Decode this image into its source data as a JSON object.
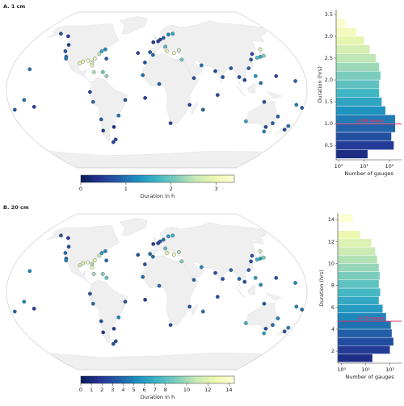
{
  "chart_data": [
    {
      "type": "map-scatter",
      "title": "A. 1 cm",
      "x": [
        -70,
        -74,
        -76,
        -80,
        -81,
        -82,
        -88,
        -94,
        -97,
        -124,
        -123,
        -118,
        -117,
        -135,
        -150,
        -66,
        -77,
        -61,
        -80,
        -77,
        -71,
        -73,
        -65,
        -38,
        -48,
        -57,
        -5,
        2,
        5,
        10,
        18,
        25,
        -9,
        -5,
        14,
        23,
        30,
        12,
        -17,
        3,
        18,
        40,
        45,
        32,
        56,
        72,
        80,
        92,
        100,
        106,
        114,
        121,
        126,
        130,
        135,
        140,
        141,
        120,
        125,
        115,
        130,
        145,
        151,
        153,
        147,
        174,
        173,
        -157,
        -150,
        -175,
        167,
        170,
        178,
        145,
        -160,
        -65,
        -25,
        -15,
        -14,
        -60,
        57,
        73
      ],
      "y": [
        42,
        40,
        37,
        32,
        25,
        28,
        30,
        29,
        27,
        47,
        40,
        34,
        32,
        57,
        60,
        18,
        18,
        14,
        -2,
        -12,
        -30,
        -42,
        -55,
        -10,
        -26,
        -38,
        50,
        51,
        53,
        55,
        59,
        60,
        39,
        36,
        40,
        38,
        41,
        45,
        15,
        6,
        -34,
        -15,
        12,
        31,
        25,
        19,
        13,
        22,
        13,
        10,
        22,
        31,
        37,
        33,
        34,
        35,
        42,
        14,
        7,
        -32,
        -12,
        -38,
        -34,
        -27,
        -43,
        -37,
        -41,
        21,
        -17,
        -20,
        9,
        -15,
        -18,
        14,
        -10,
        32,
        38,
        28,
        -8,
        -52,
        -20,
        -5
      ],
      "values": [
        1.2,
        1.5,
        2.5,
        2.8,
        3.0,
        2.6,
        3.2,
        3.0,
        2.9,
        0.6,
        0.8,
        1.0,
        1.1,
        0.5,
        0.7,
        2.0,
        2.4,
        2.2,
        0.6,
        0.9,
        0.8,
        0.5,
        0.6,
        0.7,
        1.0,
        0.4,
        0.4,
        0.5,
        0.6,
        0.8,
        1.2,
        1.5,
        0.8,
        0.9,
        2.9,
        3.1,
        2.5,
        1.8,
        1.0,
        0.8,
        0.6,
        0.5,
        0.7,
        2.0,
        1.0,
        0.6,
        0.7,
        0.8,
        0.7,
        0.6,
        0.9,
        0.7,
        0.6,
        1.8,
        1.5,
        2.2,
        2.8,
        1.3,
        1.0,
        1.5,
        0.7,
        0.6,
        0.8,
        0.9,
        1.2,
        1.0,
        0.7,
        1.0,
        0.5,
        0.8,
        0.9,
        1.1,
        0.8,
        0.6,
        1.0,
        0.9,
        0.6,
        0.7,
        0.5,
        0.6,
        0.8,
        0.6
      ],
      "colormap": [
        "#081d58",
        "#253494",
        "#225ea8",
        "#1d91c0",
        "#41b6c4",
        "#7fcdbb",
        "#c7e9b4",
        "#edf8b1",
        "#ffffd9"
      ],
      "colorbar": {
        "label": "Duration in h",
        "lim": [
          0,
          3.4
        ],
        "ticks": [
          0,
          1,
          2,
          3
        ]
      }
    },
    {
      "type": "histogram",
      "orientation": "horizontal",
      "ylabel": "Duration (hrs)",
      "xlabel": "Number of gauges",
      "bins": [
        0.2,
        0.4,
        0.6,
        0.8,
        1.0,
        1.2,
        1.4,
        1.6,
        1.8,
        2.0,
        2.2,
        2.4,
        2.6,
        2.8,
        3.0,
        3.2,
        3.4,
        3.6
      ],
      "counts": [
        14,
        150,
        120,
        170,
        170,
        70,
        50,
        40,
        40,
        45,
        40,
        30,
        17,
        10,
        5,
        2,
        1
      ],
      "xscale": "log",
      "xlim": [
        0.8,
        300
      ],
      "xticks": [
        {
          "value": 1,
          "label": "10⁰"
        },
        {
          "value": 10,
          "label": "10¹"
        },
        {
          "value": 100,
          "label": "10²"
        }
      ],
      "ylim": [
        0.17,
        3.61
      ],
      "yticks": [
        0.5,
        {
          "value": 1,
          "label": "1.0"
        },
        1.5,
        {
          "value": 2,
          "label": "2.0"
        },
        2.5,
        {
          "value": 3,
          "label": "3.0"
        },
        3.5
      ],
      "reference_line": {
        "value": 0.99,
        "label": "0.99 hours",
        "color": "#d6336c"
      }
    },
    {
      "type": "map-scatter",
      "title": "B. 20 cm",
      "x": [
        -70,
        -74,
        -76,
        -80,
        -81,
        -82,
        -88,
        -94,
        -97,
        -124,
        -123,
        -118,
        -117,
        -135,
        -150,
        -66,
        -77,
        -61,
        -80,
        -77,
        -71,
        -73,
        -65,
        -38,
        -48,
        -57,
        -5,
        2,
        5,
        10,
        18,
        25,
        -9,
        -5,
        14,
        23,
        30,
        12,
        -17,
        3,
        18,
        40,
        45,
        32,
        56,
        72,
        80,
        92,
        100,
        106,
        114,
        121,
        126,
        130,
        135,
        140,
        141,
        120,
        125,
        115,
        130,
        145,
        151,
        153,
        147,
        174,
        173,
        -157,
        -150,
        -175,
        167,
        170,
        178,
        145,
        -160,
        -65,
        -25,
        -15,
        -14,
        -60,
        57,
        73
      ],
      "y": [
        42,
        40,
        37,
        32,
        25,
        28,
        30,
        29,
        27,
        47,
        40,
        34,
        32,
        57,
        60,
        18,
        18,
        14,
        -2,
        -12,
        -30,
        -42,
        -55,
        -10,
        -26,
        -38,
        50,
        51,
        53,
        55,
        59,
        60,
        39,
        36,
        40,
        38,
        41,
        45,
        15,
        6,
        -34,
        -15,
        12,
        31,
        25,
        19,
        13,
        22,
        13,
        10,
        22,
        31,
        37,
        33,
        34,
        35,
        42,
        14,
        7,
        -32,
        -12,
        -38,
        -34,
        -27,
        -43,
        -37,
        -41,
        21,
        -17,
        -20,
        9,
        -15,
        -18,
        14,
        -10,
        32,
        38,
        28,
        -8,
        -52,
        -20,
        -5
      ],
      "values": [
        5,
        6,
        11,
        12,
        13,
        10,
        14,
        12,
        11,
        3,
        4,
        4,
        5,
        2,
        3,
        9,
        10,
        8,
        3,
        4,
        3,
        2,
        3,
        3,
        5,
        2,
        2,
        2,
        3,
        4,
        6,
        7,
        4,
        4,
        12,
        13,
        10,
        8,
        4,
        4,
        3,
        3,
        4,
        9,
        5,
        3,
        3,
        4,
        4,
        3,
        4,
        3,
        3,
        7,
        6,
        9,
        11,
        6,
        5,
        7,
        3,
        3,
        4,
        5,
        6,
        5,
        3,
        5,
        2,
        4,
        5,
        5,
        4,
        3,
        5,
        4,
        3,
        3,
        2,
        3,
        4,
        3
      ],
      "colormap": [
        "#081d58",
        "#253494",
        "#225ea8",
        "#1d91c0",
        "#41b6c4",
        "#7fcdbb",
        "#c7e9b4",
        "#edf8b1",
        "#ffffd9"
      ],
      "colorbar": {
        "label": "Duration in h",
        "lim": [
          0,
          14.5
        ],
        "ticks": [
          0,
          1,
          2,
          3,
          4,
          5,
          6,
          7,
          8,
          10,
          12,
          14
        ]
      }
    },
    {
      "type": "histogram",
      "orientation": "horizontal",
      "ylabel": "Duration (hrs)",
      "xlabel": "Number of gauges",
      "bins": [
        1,
        1.75,
        2.5,
        3.25,
        4,
        4.75,
        5.5,
        6.25,
        7,
        7.75,
        8.5,
        9.25,
        10,
        10.75,
        11.5,
        12.25,
        13,
        13.75,
        14.5
      ],
      "counts": [
        19,
        100,
        140,
        120,
        110,
        70,
        50,
        35,
        40,
        35,
        38,
        35,
        30,
        25,
        17,
        6,
        0,
        3
      ],
      "xscale": "log",
      "xlim": [
        0.7,
        300
      ],
      "xticks": [
        {
          "value": 1,
          "label": "10⁰"
        },
        {
          "value": 10,
          "label": "10¹"
        },
        {
          "value": 100,
          "label": "10²"
        }
      ],
      "ylim": [
        0.9,
        14.6
      ],
      "yticks": [
        2,
        4,
        6,
        8,
        10,
        12,
        14
      ],
      "reference_line": {
        "value": 4.73,
        "label": "4.73 hours",
        "color": "#d6336c"
      }
    }
  ]
}
